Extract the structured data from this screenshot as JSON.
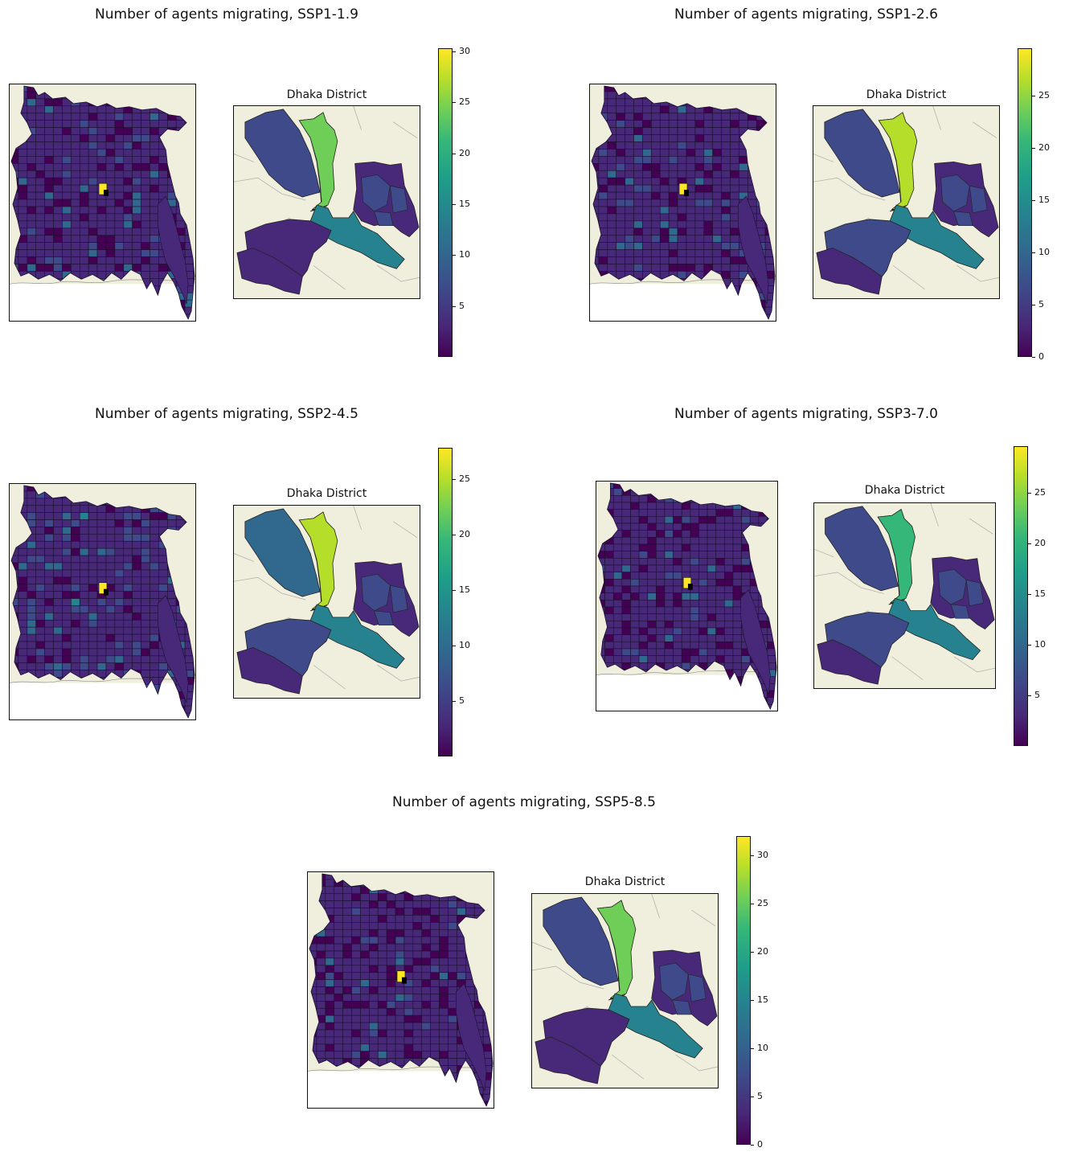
{
  "panels": [
    {
      "title": "Number of agents migrating, SSP1-1.9",
      "inset_title": "Dhaka District",
      "colorbar": {
        "min": 0.0,
        "max": 30.3,
        "ticks": [
          "5",
          "10",
          "15",
          "20",
          "25",
          "30"
        ]
      },
      "inset_values": {
        "north_west": 8,
        "center_north": 24,
        "south_east": 13,
        "south_west": 5,
        "far_south_west": 3
      },
      "bangladesh_hotspot": 30
    },
    {
      "title": "Number of agents migrating, SSP1-2.6",
      "inset_title": "Dhaka District",
      "colorbar": {
        "min": 0.0,
        "max": 29.5,
        "ticks": [
          "0",
          "5",
          "10",
          "15",
          "20",
          "25"
        ]
      },
      "inset_values": {
        "north_west": 5,
        "center_north": 25,
        "south_east": 13,
        "south_west": 7,
        "far_south_west": 3
      },
      "bangladesh_hotspot": 29
    },
    {
      "title": "Number of agents migrating, SSP2-4.5",
      "inset_title": "Dhaka District",
      "colorbar": {
        "min": 0.0,
        "max": 27.8,
        "ticks": [
          "5",
          "10",
          "15",
          "20",
          "25"
        ]
      },
      "inset_values": {
        "north_west": 8,
        "center_north": 24,
        "south_east": 13,
        "south_west": 6,
        "far_south_west": 3
      },
      "bangladesh_hotspot": 28
    },
    {
      "title": "Number of agents migrating, SSP3-7.0",
      "inset_title": "Dhaka District",
      "colorbar": {
        "min": 0.0,
        "max": 29.6,
        "ticks": [
          "5",
          "10",
          "15",
          "20",
          "25"
        ]
      },
      "inset_values": {
        "north_west": 7,
        "center_north": 20,
        "south_east": 13,
        "south_west": 5,
        "far_south_west": 3
      },
      "bangladesh_hotspot": 29
    },
    {
      "title": "Number of agents migrating, SSP5-8.5",
      "inset_title": "Dhaka District",
      "colorbar": {
        "min": 0.0,
        "max": 32.0,
        "ticks": [
          "0",
          "5",
          "10",
          "15",
          "20",
          "25",
          "30"
        ]
      },
      "inset_values": {
        "north_west": 8,
        "center_north": 26,
        "south_east": 13,
        "south_west": 5,
        "far_south_west": 3
      },
      "bangladesh_hotspot": 32
    }
  ],
  "colors": {
    "background_land": "#f0eedc",
    "district_base": "#3b2a6f",
    "district_border": "#1a1030",
    "hotspot": "#fde725",
    "viridis": [
      "#440154",
      "#482878",
      "#3e4a89",
      "#31688e",
      "#26828e",
      "#1f9e89",
      "#35b779",
      "#6ece58",
      "#b5de2b",
      "#fde725"
    ]
  }
}
